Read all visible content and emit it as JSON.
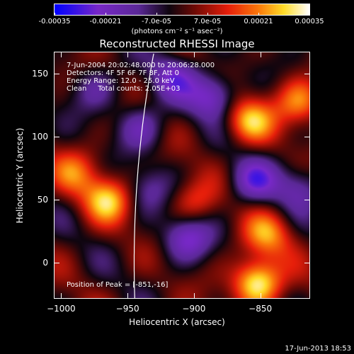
{
  "colorbar": {
    "ticks": [
      "-0.00035",
      "-0.00021",
      "-7.0e-05",
      "7.0e-05",
      "0.00021",
      "0.00035"
    ],
    "tick_values": [
      -0.00035,
      -0.00021,
      -7e-05,
      7e-05,
      0.00021,
      0.00035
    ],
    "range": [
      -0.00035,
      0.00035
    ],
    "units_label": "(photons cm⁻² s⁻¹ asec⁻²)"
  },
  "chart_data": {
    "type": "heatmap",
    "title": "Reconstructed RHESSI Image",
    "xlabel": "Heliocentric X (arcsec)",
    "ylabel": "Heliocentric Y (arcsec)",
    "xlim": [
      -1005,
      -813
    ],
    "ylim": [
      -28,
      167
    ],
    "xticks": [
      -1000,
      -950,
      -900,
      -850
    ],
    "xtick_labels": [
      "−1000",
      "−950",
      "−900",
      "−850"
    ],
    "yticks": [
      0,
      50,
      100,
      150
    ],
    "ytick_labels": [
      "0",
      "50",
      "100",
      "150"
    ],
    "colormap": "rainbow/thermal (blue-purple-black-red-yellow-white)",
    "annotations": [
      "7-Jun-2004 20:02:48.000 to 20:06:28.000",
      "Detectors: 4F 5F 6F 7F 8F, Att 0",
      "Energy Range: 12.0 - 25.0 keV",
      "Clean     Total counts: 2.05E+03"
    ],
    "peak_label": "Position of Peak = [-851,-16]",
    "peak": [
      -851,
      -16
    ],
    "features": [
      {
        "x": -852,
        "y": -16,
        "value": 0.00035
      },
      {
        "x": -965,
        "y": 50,
        "value": 0.00026
      },
      {
        "x": -858,
        "y": 113,
        "value": 0.00025
      },
      {
        "x": -820,
        "y": 128,
        "value": 0.00022
      },
      {
        "x": -845,
        "y": 22,
        "value": 0.0002
      },
      {
        "x": -990,
        "y": 72,
        "value": 0.00016
      },
      {
        "x": -900,
        "y": 48,
        "value": 0.00014
      },
      {
        "x": -885,
        "y": 133,
        "value": -0.00024
      },
      {
        "x": -915,
        "y": 148,
        "value": -0.00018
      },
      {
        "x": -905,
        "y": 20,
        "value": -0.00022
      },
      {
        "x": -940,
        "y": 108,
        "value": -0.00016
      },
      {
        "x": -855,
        "y": 65,
        "value": -0.0002
      },
      {
        "x": -935,
        "y": 58,
        "value": -0.00012
      },
      {
        "x": -820,
        "y": 60,
        "value": -0.00015
      },
      {
        "x": -975,
        "y": 138,
        "value": -0.00012
      }
    ]
  },
  "footer": {
    "timestamp": "17-Jun-2013 18:53"
  }
}
